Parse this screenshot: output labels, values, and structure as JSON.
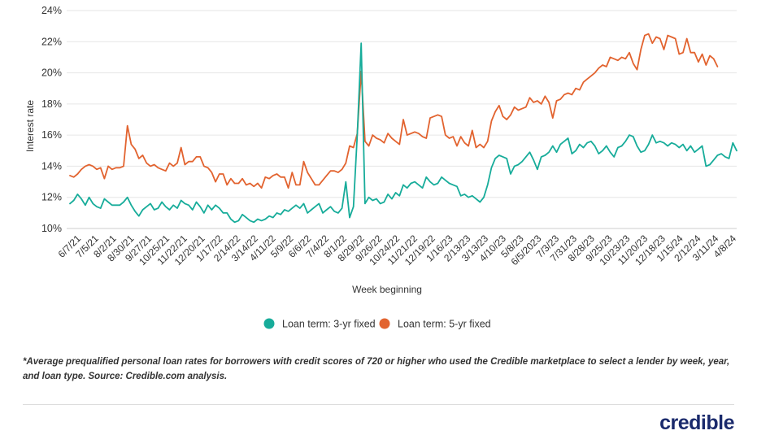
{
  "chart_data": {
    "type": "line",
    "ylabel": "Interest rate",
    "xlabel": "Week beginning",
    "ylim": [
      10,
      24
    ],
    "y_ticks": [
      "10%",
      "12%",
      "14%",
      "16%",
      "18%",
      "20%",
      "22%",
      "24%"
    ],
    "y_tick_values": [
      10,
      12,
      14,
      16,
      18,
      20,
      22,
      24
    ],
    "x_ticks": [
      "6/7/21",
      "7/5/21",
      "8/2/21",
      "8/30/21",
      "9/27/21",
      "10/25/21",
      "11/22/21",
      "12/20/21",
      "1/17/22",
      "2/14/22",
      "3/14/22",
      "4/11/22",
      "5/9/22",
      "6/6/22",
      "7/4/22",
      "8/1/22",
      "8/29/22",
      "9/26/22",
      "10/24/22",
      "11/21/22",
      "12/19/22",
      "1/16/23",
      "2/13/23",
      "3/13/23",
      "4/10/23",
      "5/8/23",
      "6/5/2023",
      "7/3/23",
      "7/31/23",
      "8/28/23",
      "9/25/23",
      "10/23/23",
      "11/20/23",
      "12/18/23",
      "1/15/24",
      "2/12/24",
      "3/11/24",
      "4/8/24"
    ],
    "grid": "horizontal",
    "legend_position": "bottom",
    "series": [
      {
        "name": "Loan term: 3-yr fixed",
        "color": "#17ac9a",
        "values": [
          11.6,
          11.8,
          12.2,
          11.9,
          11.5,
          12.0,
          11.6,
          11.4,
          11.3,
          11.9,
          11.7,
          11.5,
          11.5,
          11.5,
          11.7,
          12.0,
          11.5,
          11.1,
          10.8,
          11.2,
          11.4,
          11.6,
          11.2,
          11.3,
          11.7,
          11.4,
          11.2,
          11.5,
          11.3,
          11.8,
          11.6,
          11.5,
          11.2,
          11.7,
          11.4,
          11.0,
          11.5,
          11.2,
          11.5,
          11.3,
          11.0,
          11.0,
          10.6,
          10.4,
          10.5,
          10.9,
          10.7,
          10.5,
          10.4,
          10.6,
          10.5,
          10.6,
          10.8,
          10.7,
          11.0,
          10.9,
          11.2,
          11.1,
          11.3,
          11.5,
          11.3,
          11.6,
          11.0,
          11.2,
          11.4,
          11.6,
          11.0,
          11.2,
          11.4,
          11.1,
          11.0,
          11.3,
          13.0,
          10.7,
          11.4,
          16.0,
          21.9,
          11.6,
          12.0,
          11.8,
          11.9,
          11.6,
          11.7,
          12.2,
          11.9,
          12.3,
          12.1,
          12.8,
          12.6,
          12.9,
          13.0,
          12.8,
          12.6,
          13.3,
          13.0,
          12.8,
          12.9,
          13.3,
          13.1,
          12.9,
          12.8,
          12.7,
          12.1,
          12.2,
          12.0,
          12.1,
          11.9,
          11.7,
          12.0,
          12.8,
          13.9,
          14.5,
          14.7,
          14.6,
          14.5,
          13.5,
          14.0,
          14.1,
          14.3,
          14.6,
          14.9,
          14.4,
          13.8,
          14.6,
          14.7,
          14.9,
          15.3,
          14.9,
          15.4,
          15.6,
          15.8,
          14.8,
          15.0,
          15.4,
          15.2,
          15.5,
          15.6,
          15.3,
          14.8,
          15.0,
          15.3,
          14.9,
          14.6,
          15.2,
          15.3,
          15.6,
          16.0,
          15.9,
          15.3,
          14.9,
          15.0,
          15.4,
          16.0,
          15.5,
          15.6,
          15.5,
          15.3,
          15.5,
          15.4,
          15.2,
          15.4,
          15.0,
          15.3,
          14.9,
          15.1,
          15.3,
          14.0,
          14.1,
          14.4,
          14.7,
          14.8,
          14.6,
          14.5,
          15.5,
          15.0
        ]
      },
      {
        "name": "Loan term: 5-yr fixed",
        "color": "#e2632f",
        "values": [
          13.4,
          13.3,
          13.5,
          13.8,
          14.0,
          14.1,
          14.0,
          13.8,
          13.9,
          13.2,
          14.0,
          13.8,
          13.9,
          13.9,
          14.0,
          16.6,
          15.4,
          15.1,
          14.5,
          14.7,
          14.2,
          14.0,
          14.1,
          13.9,
          13.8,
          13.7,
          14.2,
          14.0,
          14.2,
          15.2,
          14.1,
          14.3,
          14.3,
          14.6,
          14.6,
          14.0,
          13.9,
          13.6,
          13.0,
          13.5,
          13.5,
          12.8,
          13.2,
          12.9,
          12.9,
          13.2,
          12.8,
          12.9,
          12.7,
          12.9,
          12.6,
          13.3,
          13.2,
          13.4,
          13.5,
          13.3,
          13.3,
          12.6,
          13.6,
          12.8,
          12.8,
          14.3,
          13.6,
          13.2,
          12.8,
          12.8,
          13.1,
          13.4,
          13.7,
          13.7,
          13.6,
          13.8,
          14.2,
          15.3,
          15.2,
          16.1,
          20.1,
          15.6,
          15.3,
          16.0,
          15.8,
          15.7,
          15.5,
          16.1,
          15.8,
          15.6,
          15.4,
          17.0,
          16.0,
          16.1,
          16.2,
          16.1,
          15.9,
          15.8,
          17.1,
          17.2,
          17.3,
          17.2,
          16.0,
          15.8,
          15.9,
          15.3,
          15.9,
          15.5,
          15.3,
          16.3,
          15.2,
          15.4,
          15.2,
          15.6,
          16.9,
          17.5,
          17.9,
          17.2,
          17.0,
          17.3,
          17.8,
          17.6,
          17.7,
          17.8,
          18.4,
          18.1,
          18.2,
          18.0,
          18.5,
          18.1,
          17.1,
          18.2,
          18.3,
          18.6,
          18.7,
          18.6,
          19.0,
          18.9,
          19.4,
          19.6,
          19.8,
          20.0,
          20.3,
          20.5,
          20.4,
          21.0,
          20.9,
          20.8,
          21.0,
          20.9,
          21.3,
          20.6,
          20.2,
          21.5,
          22.4,
          22.5,
          21.9,
          22.3,
          22.2,
          21.5,
          22.4,
          22.3,
          22.2,
          21.2,
          21.3,
          22.2,
          21.3,
          21.3,
          20.7,
          21.2,
          20.5,
          21.1,
          20.9,
          20.4
        ]
      }
    ]
  },
  "legend": [
    {
      "label": "Loan term: 3-yr fixed",
      "color": "#17ac9a"
    },
    {
      "label": "Loan term: 5-yr fixed",
      "color": "#e2632f"
    }
  ],
  "footnote": "*Average prequalified personal loan rates for borrowers with credit scores of 720 or higher who used the Credible marketplace to select a lender by week, year, and loan type. Source: Credible.com analysis.",
  "logo_text": "credible"
}
